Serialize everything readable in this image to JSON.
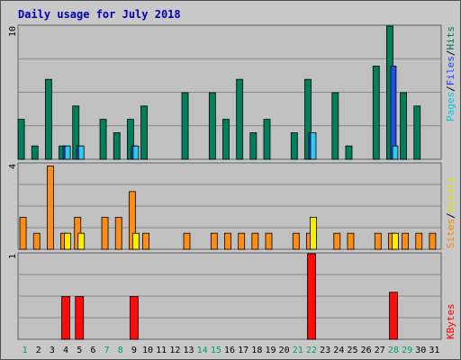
{
  "chart_data": {
    "type": "bar",
    "title": "Daily usage for July 2018",
    "days": [
      "1",
      "2",
      "3",
      "4",
      "5",
      "6",
      "7",
      "8",
      "9",
      "10",
      "11",
      "12",
      "13",
      "14",
      "15",
      "16",
      "17",
      "18",
      "19",
      "20",
      "21",
      "22",
      "23",
      "24",
      "25",
      "26",
      "27",
      "28",
      "29",
      "30",
      "31"
    ],
    "weekend_days": [
      1,
      7,
      8,
      14,
      15,
      21,
      22,
      28,
      29
    ],
    "panels": [
      {
        "id": "hits",
        "max_label": "10",
        "ymax": 10,
        "legend": [
          {
            "text": "Pages",
            "color": "#00c8e0"
          },
          {
            "text": "Files",
            "color": "#2040ff"
          },
          {
            "text": "Hits",
            "color": "#007050"
          }
        ],
        "series": [
          {
            "name": "Hits",
            "color": "#00805a",
            "values": [
              3,
              1,
              6,
              1,
              4,
              0,
              3,
              2,
              3,
              4,
              0,
              0,
              5,
              0,
              5,
              3,
              6,
              2,
              3,
              0,
              2,
              6,
              0,
              5,
              1,
              0,
              7,
              10,
              5,
              4,
              0
            ]
          },
          {
            "name": "Files",
            "color": "#2050e8",
            "values": [
              0,
              0,
              0,
              1,
              1,
              0,
              0,
              0,
              1,
              0,
              0,
              0,
              0,
              0,
              0,
              0,
              0,
              0,
              0,
              0,
              0,
              2,
              0,
              0,
              0,
              0,
              0,
              7,
              0,
              0,
              0
            ]
          },
          {
            "name": "Pages",
            "color": "#30c8f0",
            "values": [
              0,
              0,
              0,
              1,
              1,
              0,
              0,
              0,
              1,
              0,
              0,
              0,
              0,
              0,
              0,
              0,
              0,
              0,
              0,
              0,
              0,
              2,
              0,
              0,
              0,
              0,
              0,
              1,
              0,
              0,
              0
            ]
          }
        ]
      },
      {
        "id": "visits",
        "max_label": "4",
        "ymax": 4,
        "legend": [
          {
            "text": "Sites",
            "color": "#ff8000"
          },
          {
            "text": "Visits",
            "color": "#e0e000"
          }
        ],
        "series": [
          {
            "name": "Sites",
            "color": "#ff8c14",
            "values": [
              1.5,
              0.75,
              3.9,
              0.75,
              1.5,
              0,
              1.5,
              1.5,
              2.7,
              0.75,
              0,
              0,
              0.75,
              0,
              0.75,
              0.75,
              0.75,
              0.75,
              0.75,
              0,
              0.75,
              0.75,
              0,
              0.75,
              0.75,
              0,
              0.75,
              0.75,
              0.75,
              0.75,
              0.75
            ]
          },
          {
            "name": "Visits",
            "color": "#f8f000",
            "values": [
              0,
              0,
              0,
              0.75,
              0.75,
              0,
              0,
              0,
              0.75,
              0,
              0,
              0,
              0,
              0,
              0,
              0,
              0,
              0,
              0,
              0,
              0,
              1.5,
              0,
              0,
              0,
              0,
              0,
              0.75,
              0,
              0,
              0
            ]
          }
        ]
      },
      {
        "id": "kbytes",
        "max_label": "1",
        "ymax": 1,
        "legend": [
          {
            "text": "KBytes",
            "color": "#ff0000"
          }
        ],
        "series": [
          {
            "name": "KBytes",
            "color": "#ff0a0a",
            "values": [
              0,
              0,
              0,
              0.5,
              0.5,
              0,
              0,
              0,
              0.5,
              0,
              0,
              0,
              0,
              0,
              0,
              0,
              0,
              0,
              0,
              0,
              0,
              1,
              0,
              0,
              0,
              0,
              0,
              0.55,
              0,
              0,
              0
            ]
          }
        ]
      }
    ],
    "colors": {
      "frame_background": "#c8c8c8",
      "plot_background": "#c0c0c0",
      "title": "#0000b0",
      "weekday_label": "#000000",
      "weekend_label": "#00a060"
    }
  }
}
